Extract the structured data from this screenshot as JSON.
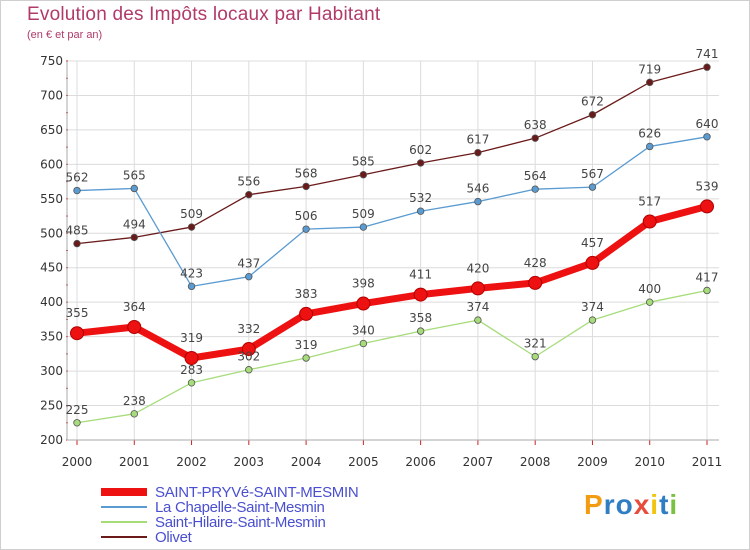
{
  "title": "Evolution des Impôts locaux par Habitant",
  "subtitle": "(en € et par an)",
  "logo": {
    "letters": [
      "P",
      "r",
      "o",
      "x",
      "i",
      "t",
      "i"
    ],
    "colors": [
      "#f39c12",
      "#2f7ec4",
      "#2f7ec4",
      "#e74c3c",
      "#f1c40f",
      "#2f7ec4",
      "#7ac143"
    ]
  },
  "chart_data": {
    "type": "line",
    "categories": [
      "2000",
      "2001",
      "2002",
      "2003",
      "2004",
      "2005",
      "2006",
      "2007",
      "2008",
      "2009",
      "2010",
      "2011"
    ],
    "ylim": [
      200,
      750
    ],
    "yticks": [
      200,
      250,
      300,
      350,
      400,
      450,
      500,
      550,
      600,
      650,
      700,
      750
    ],
    "grid": true,
    "series": [
      {
        "name": "Olivet",
        "color": "#6b1a1a",
        "values": [
          485,
          494,
          509,
          556,
          568,
          585,
          602,
          617,
          638,
          672,
          719,
          741
        ],
        "labels": [
          "485",
          "494",
          "509",
          "556",
          "568",
          "585",
          "602",
          "617",
          "638",
          "672",
          "719",
          "741"
        ]
      },
      {
        "name": "La Chapelle-Saint-Mesmin",
        "color": "#5a9bd1",
        "values": [
          562,
          565,
          423,
          437,
          506,
          509,
          532,
          546,
          564,
          567,
          626,
          640
        ],
        "labels": [
          "562",
          "565",
          "423",
          "437",
          "506",
          "509",
          "532",
          "546",
          "564",
          "567",
          "626",
          "640"
        ]
      },
      {
        "name": "Saint-Hilaire-Saint-Mesmin",
        "color": "#a6dc7a",
        "values": [
          225,
          238,
          283,
          302,
          319,
          340,
          358,
          374,
          321,
          374,
          400,
          417
        ],
        "labels": [
          "225",
          "238",
          "283",
          "302",
          "319",
          "340",
          "358",
          "374",
          "321",
          "374",
          "400",
          "417"
        ]
      },
      {
        "name": "SAINT-PRYVé-SAINT-MESMIN",
        "color": "#ee1111",
        "values": [
          355,
          364,
          319,
          332,
          383,
          398,
          411,
          420,
          428,
          457,
          517,
          539
        ],
        "labels": [
          "355",
          "364",
          "319",
          "332",
          "383",
          "398",
          "411",
          "420",
          "428",
          "457",
          "517",
          "539"
        ]
      }
    ],
    "legend": [
      "SAINT-PRYVé-SAINT-MESMIN",
      "La Chapelle-Saint-Mesmin",
      "Saint-Hilaire-Saint-Mesmin",
      "Olivet"
    ]
  }
}
